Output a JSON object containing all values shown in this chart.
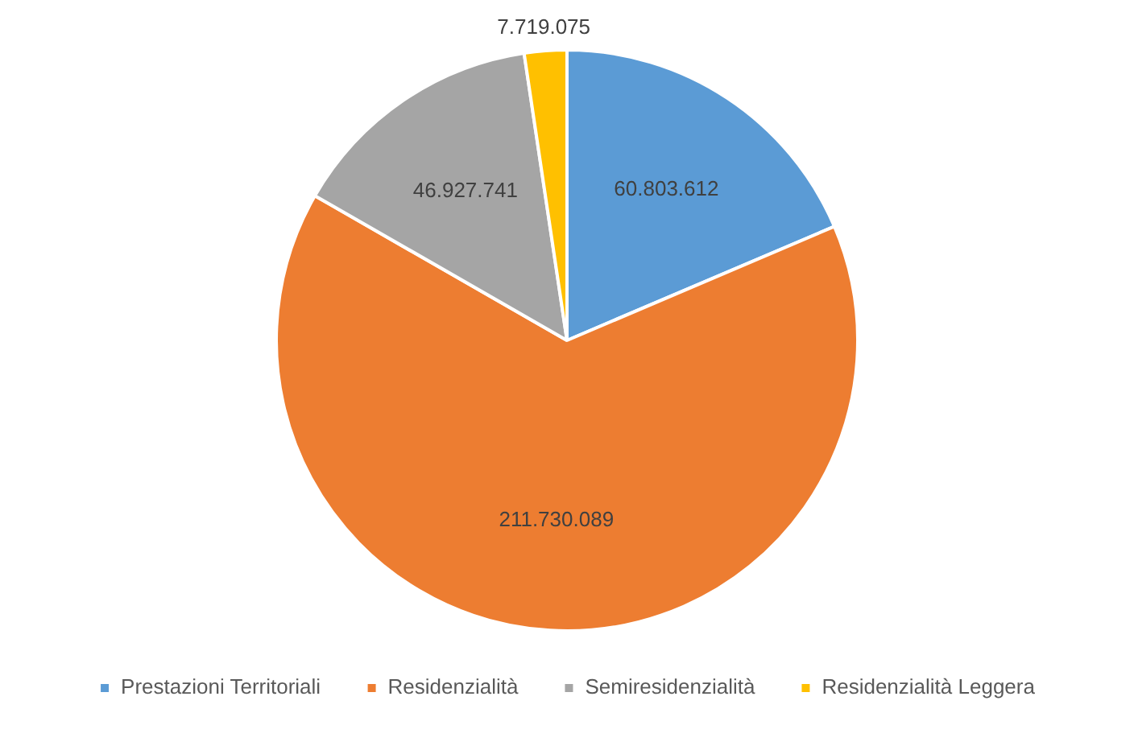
{
  "chart_data": {
    "type": "pie",
    "categories": [
      "Prestazioni Territoriali",
      "Residenzialità",
      "Semiresidenzialità",
      "Residenzialità Leggera"
    ],
    "values": [
      60803612,
      211730089,
      46927741,
      7719075
    ],
    "value_labels": [
      "60.803.612",
      "211.730.089",
      "46.927.741",
      "7.719.075"
    ],
    "colors": [
      "#5b9bd5",
      "#ed7d31",
      "#a5a5a5",
      "#ffc000"
    ],
    "legend": "bottom"
  }
}
